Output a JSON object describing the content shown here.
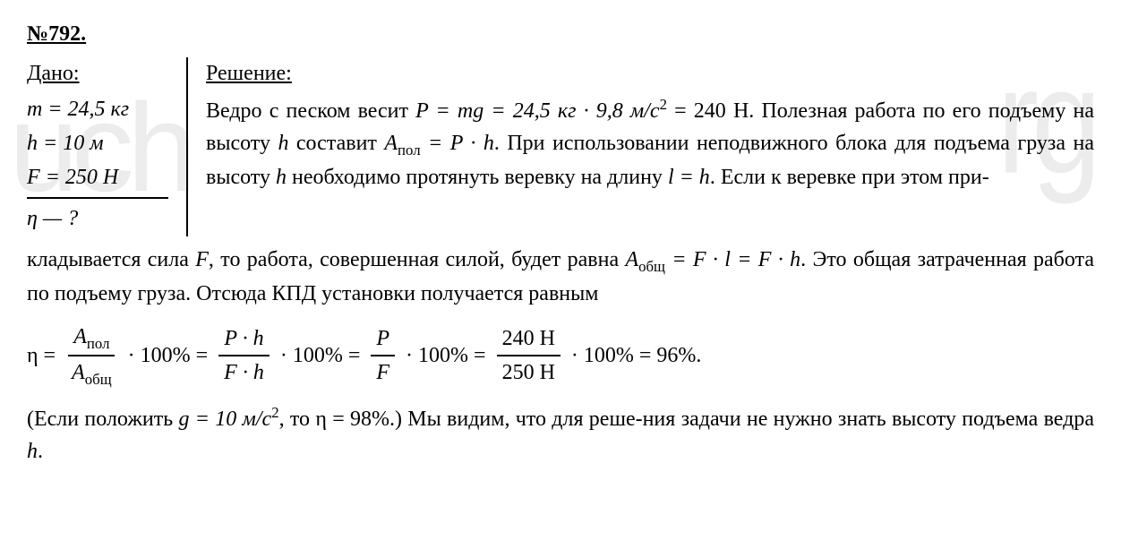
{
  "problem": {
    "number": "№792.",
    "given_header": "Дано:",
    "given": {
      "mass": "m = 24,5 кг",
      "height": "h = 10 м",
      "force": "F = 250 Н",
      "unknown": "η — ?"
    },
    "solution_header": "Решение:",
    "solution_text_1": "Ведро с песком весит ",
    "solution_formula_1": "P = mg = 24,5 кг · 9,8 м/с",
    "solution_sup_1": "2",
    "solution_formula_1b": " = 240 Н.",
    "solution_text_2": "Полезная работа по его подъему на высоту ",
    "solution_var_h": "h",
    "solution_text_2b": " составит ",
    "solution_formula_2": "A",
    "solution_sub_pol": "пол",
    "solution_formula_2b": " = P · h",
    "solution_text_3": ". При использовании неподвижного блока для подъема груза на высоту ",
    "solution_text_3b": " необходимо протянуть веревку на длину ",
    "solution_formula_3": "l = h",
    "solution_text_4": ". Если к веревке при этом при-",
    "continuation_1": "кладывается сила ",
    "continuation_var_f": "F",
    "continuation_1b": ", то работа, совершенная силой, будет равна ",
    "continuation_formula": "A",
    "continuation_sub_obsh": "общ",
    "continuation_formula_b": " = F · l = F · h",
    "continuation_2": ". Это общая затраченная работа по подъему груза. Отсюда КПД установки получается равным",
    "formula": {
      "eta": "η =",
      "frac1_top": "A",
      "frac1_top_sub": "пол",
      "frac1_bot": "A",
      "frac1_bot_sub": "общ",
      "pct1": "· 100% =",
      "frac2_top": "P · h",
      "frac2_bot": "F · h",
      "pct2": "· 100% =",
      "frac3_top": "P",
      "frac3_bot": "F",
      "pct3": "· 100% =",
      "frac4_top": "240 Н",
      "frac4_bot": "250 Н",
      "pct4": "· 100% = 96%."
    },
    "note_1": "(Если положить ",
    "note_formula_1": "g = 10 м/с",
    "note_sup": "2",
    "note_1b": ", то η = 98%.) Мы видим, что для реше-ния задачи не нужно знать высоту подъема ведра ",
    "note_var_h": "h",
    "note_end": "."
  },
  "watermark": {
    "left": "uch",
    "right": "rg"
  },
  "styling": {
    "font_family": "Times New Roman",
    "font_size": 24,
    "text_color": "#000000",
    "background_color": "#ffffff",
    "watermark_color": "rgba(180,180,180,0.25)"
  }
}
